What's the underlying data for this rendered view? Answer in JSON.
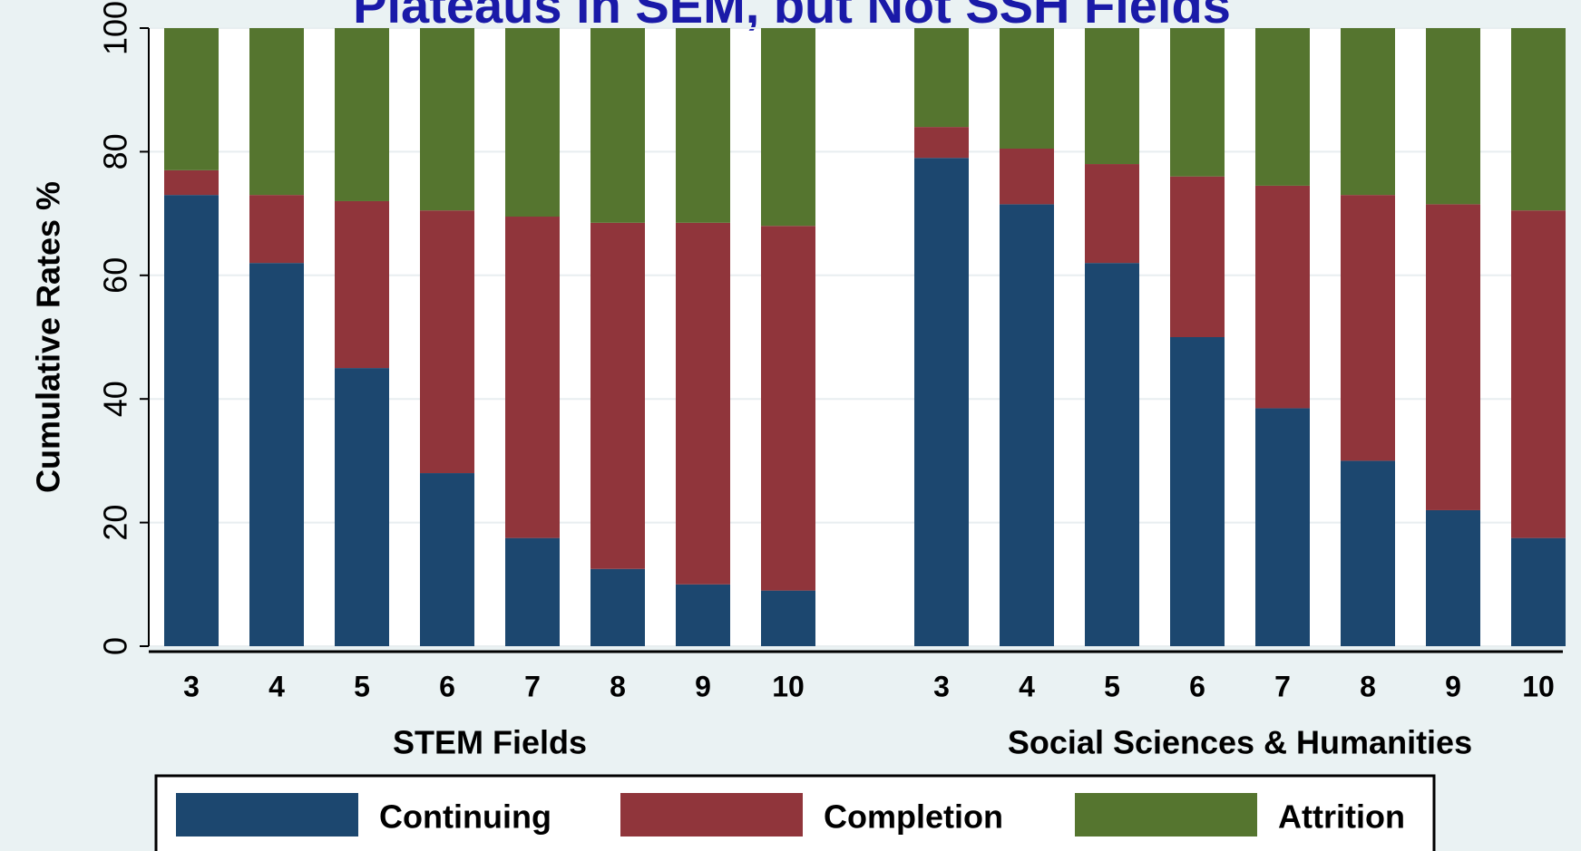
{
  "chart_data": {
    "type": "stacked_bar",
    "title": "Plateaus in SEM, but Not SSH Fields",
    "y_label": "Cumulative Rates %",
    "groups": [
      {
        "label": "STEM Fields",
        "categories": [
          "3",
          "4",
          "5",
          "6",
          "7",
          "8",
          "9",
          "10"
        ]
      },
      {
        "label": "Social Sciences & Humanities",
        "categories": [
          "3",
          "4",
          "5",
          "6",
          "7",
          "8",
          "9",
          "10"
        ]
      }
    ],
    "series": [
      {
        "name": "Continuing",
        "color": "#1c476f",
        "values": [
          73,
          62,
          45,
          28,
          17.5,
          12.5,
          10,
          9,
          79,
          71.5,
          62,
          50,
          38.5,
          30,
          22,
          17.5
        ]
      },
      {
        "name": "Completion",
        "color": "#90353b",
        "values": [
          4,
          11,
          27,
          42.5,
          52,
          56,
          58.5,
          59,
          5,
          9,
          16,
          26,
          36,
          43,
          49.5,
          53
        ]
      },
      {
        "name": "Attrition",
        "color": "#55752f",
        "values": [
          23,
          27,
          28,
          29.5,
          30.5,
          31.5,
          31.5,
          32,
          16,
          19.5,
          22,
          24,
          25.5,
          27,
          28.5,
          29.5
        ]
      }
    ],
    "ylim": [
      0,
      100
    ],
    "yticks": [
      0,
      20,
      40,
      60,
      80,
      100
    ],
    "grid": true
  }
}
